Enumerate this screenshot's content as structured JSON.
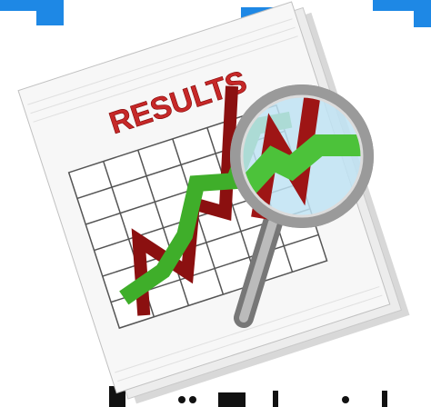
{
  "document": {
    "heading": "RESULTS"
  }
}
